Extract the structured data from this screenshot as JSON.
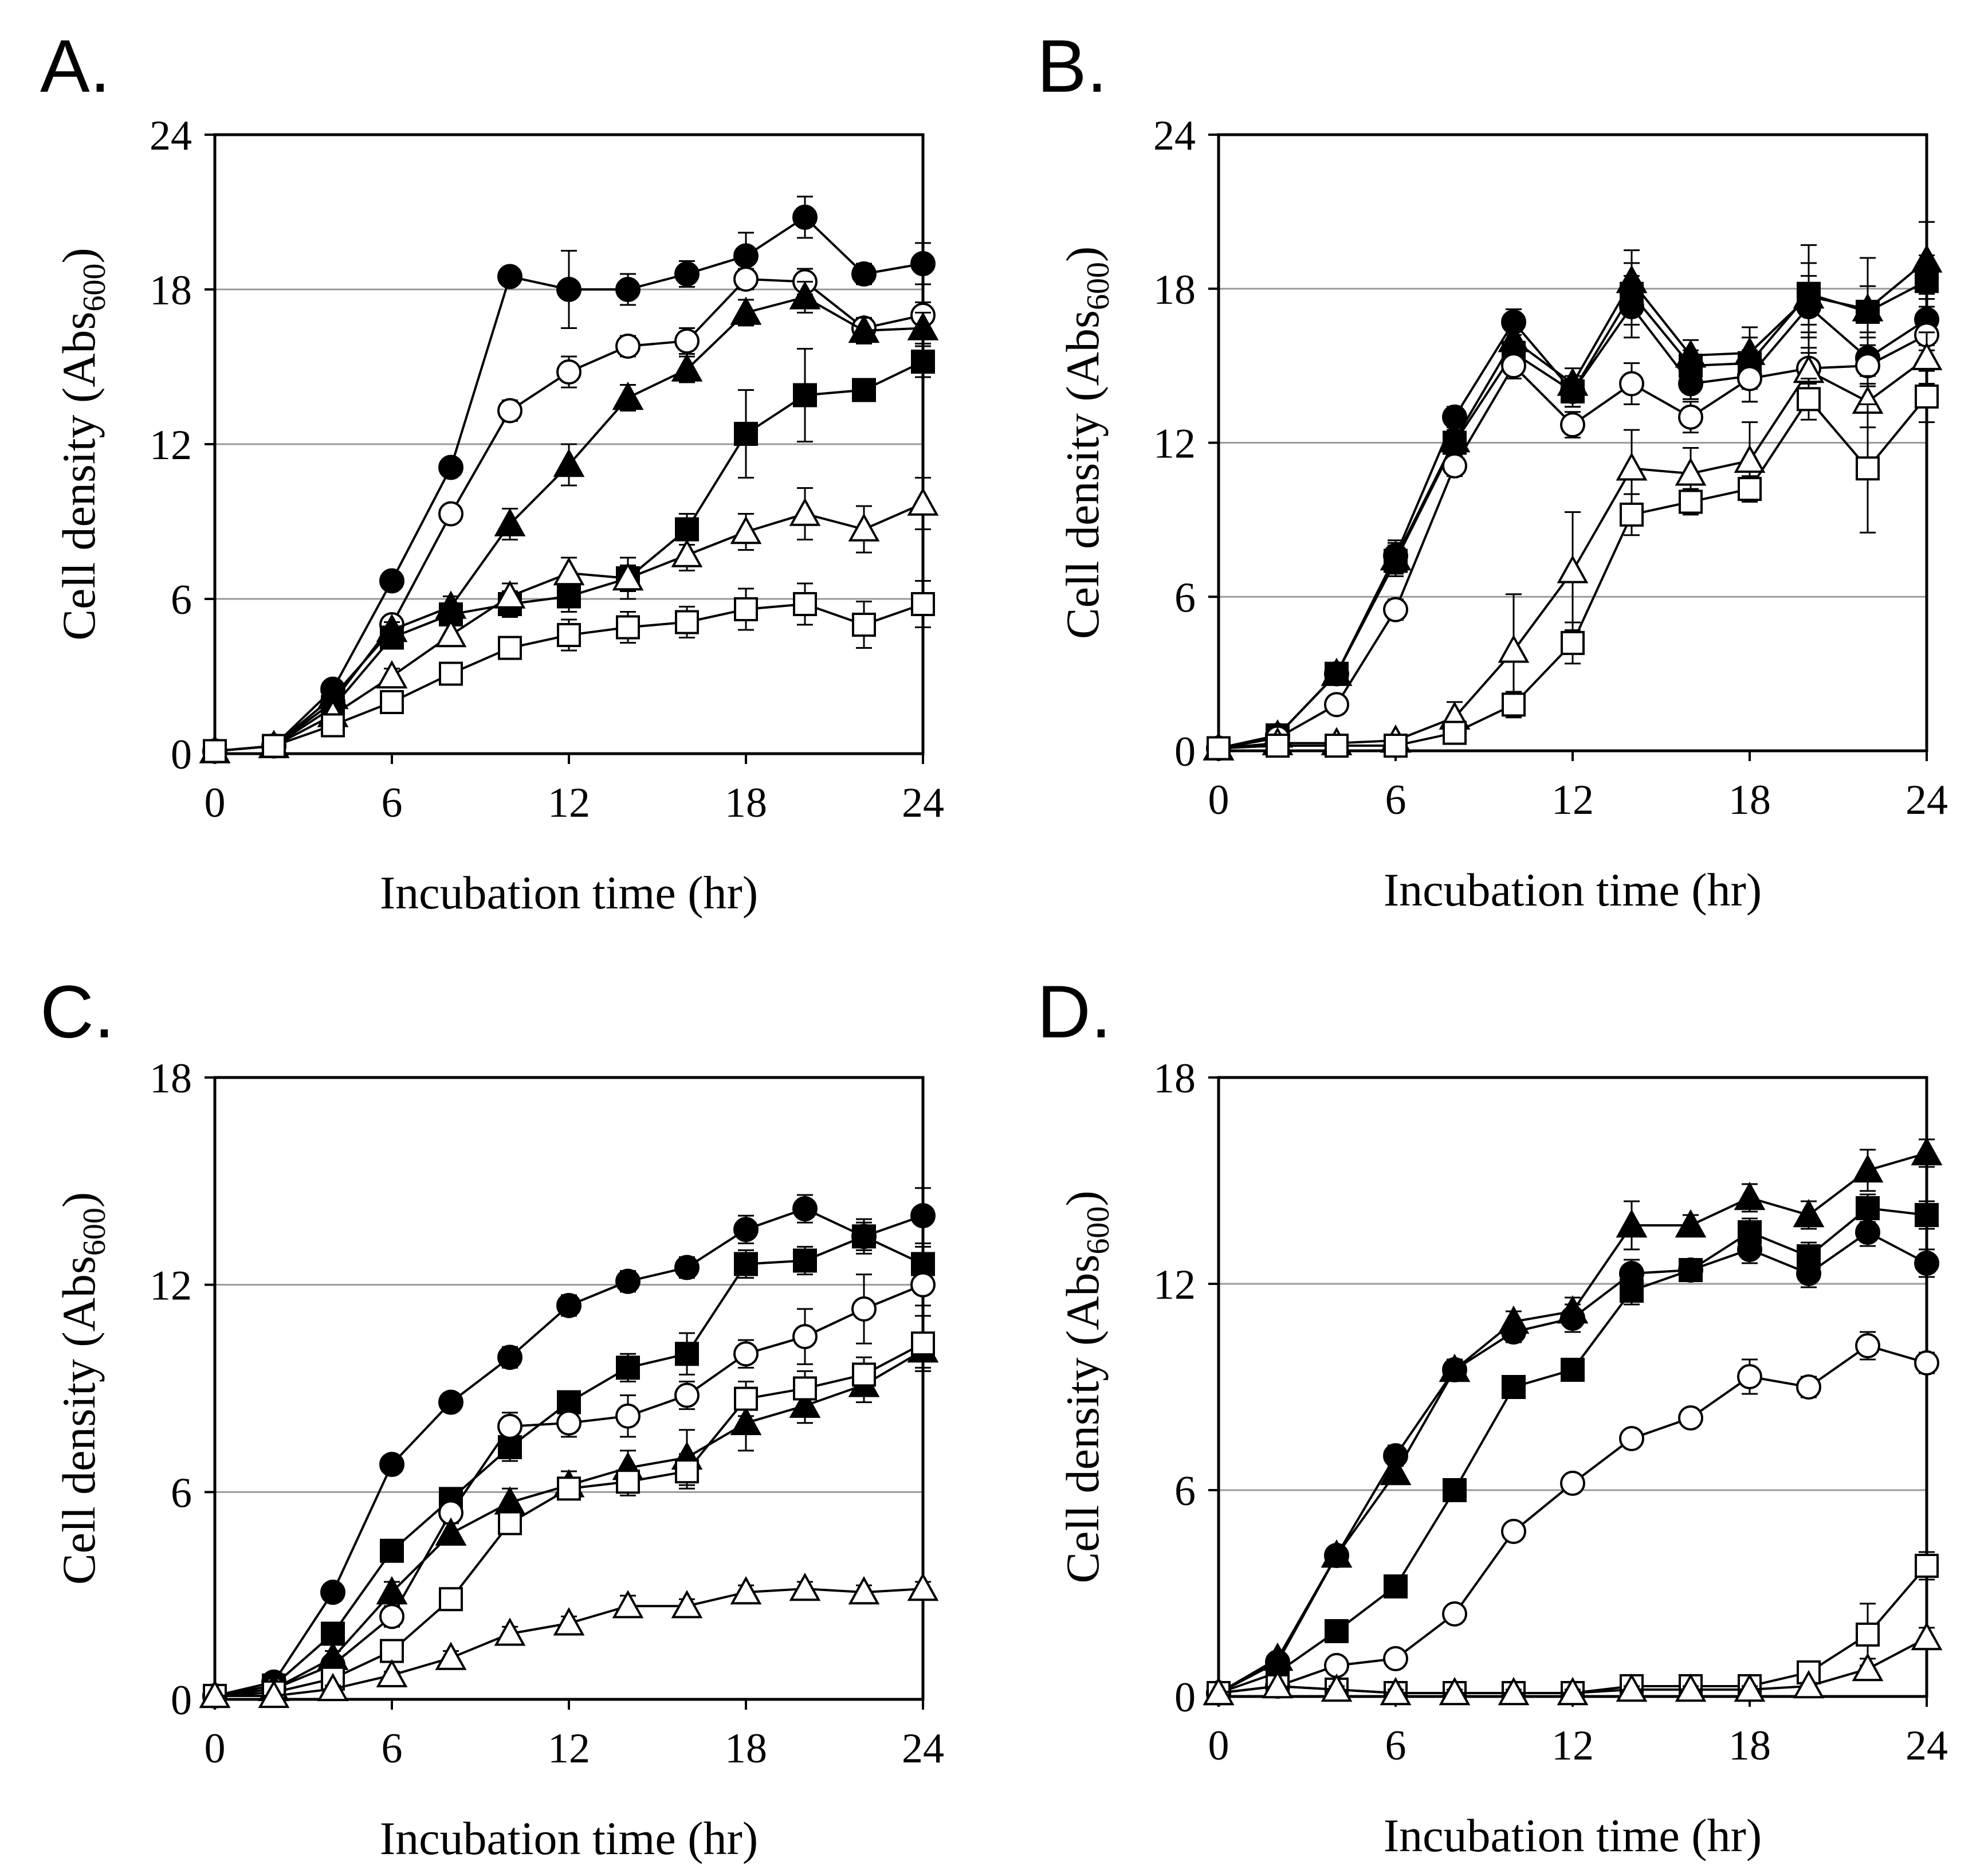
{
  "chart_data": [
    {
      "panel": "A.",
      "type": "line",
      "xlabel": "Incubation time (hr)",
      "ylabel_main": "Cell density (Abs",
      "ylabel_sub": "600",
      "ylabel_close": ")",
      "xlim": [
        0,
        24
      ],
      "ylim": [
        0,
        24
      ],
      "xticks": [
        "0",
        "6",
        "12",
        "18",
        "24"
      ],
      "yticks": [
        "0",
        "6",
        "12",
        "18",
        "24"
      ],
      "grid_y": [
        6,
        12,
        18
      ],
      "x": [
        0,
        2,
        4,
        6,
        8,
        10,
        12,
        14,
        16,
        18,
        20,
        22,
        24
      ],
      "series": [
        {
          "name": "filled-circle",
          "marker": "circle",
          "fill": "#000000",
          "values": [
            0.1,
            0.3,
            2.5,
            6.7,
            11.1,
            18.5,
            18.0,
            18.0,
            18.6,
            19.3,
            20.8,
            18.6,
            19.0
          ],
          "errors": [
            0,
            0,
            0.2,
            0.3,
            0.3,
            0.3,
            1.5,
            0.6,
            0.5,
            0.9,
            0.8,
            0.4,
            0.8
          ]
        },
        {
          "name": "open-circle",
          "marker": "circle",
          "fill": "#ffffff",
          "values": [
            0.1,
            0.3,
            2.0,
            5.0,
            9.3,
            13.3,
            14.8,
            15.8,
            16.0,
            18.4,
            18.3,
            16.5,
            17.0
          ],
          "errors": [
            0,
            0,
            0.2,
            0.3,
            0.3,
            0.4,
            0.6,
            0.4,
            0.5,
            0.4,
            0.5,
            0.4,
            0.5
          ]
        },
        {
          "name": "filled-triangle",
          "marker": "triangle",
          "fill": "#000000",
          "values": [
            0.1,
            0.3,
            2.2,
            4.8,
            5.7,
            8.9,
            11.2,
            13.8,
            14.9,
            17.1,
            17.7,
            16.4,
            16.5
          ],
          "errors": [
            0,
            0,
            0.2,
            0.3,
            0.4,
            0.6,
            0.8,
            0.5,
            0.5,
            0.5,
            0.6,
            0.5,
            0.6
          ]
        },
        {
          "name": "filled-square",
          "marker": "square",
          "fill": "#000000",
          "values": [
            0.1,
            0.3,
            1.8,
            4.5,
            5.4,
            5.8,
            6.1,
            6.8,
            8.7,
            12.4,
            13.9,
            14.1,
            15.2
          ],
          "errors": [
            0,
            0,
            0.2,
            0.3,
            0.4,
            0.5,
            0.6,
            0.5,
            0.6,
            1.7,
            1.8,
            0.4,
            0.6
          ]
        },
        {
          "name": "open-triangle",
          "marker": "triangle",
          "fill": "#ffffff",
          "values": [
            0.1,
            0.3,
            1.5,
            3.0,
            4.6,
            6.1,
            7.0,
            6.8,
            7.7,
            8.6,
            9.3,
            8.7,
            9.7
          ],
          "errors": [
            0,
            0,
            0.2,
            0.3,
            0.4,
            0.5,
            0.6,
            0.8,
            0.6,
            0.7,
            1.0,
            0.9,
            1.0
          ]
        },
        {
          "name": "open-square",
          "marker": "square",
          "fill": "#ffffff",
          "values": [
            0.1,
            0.3,
            1.1,
            2.0,
            3.1,
            4.1,
            4.6,
            4.9,
            5.1,
            5.6,
            5.8,
            5.0,
            5.8
          ],
          "errors": [
            0,
            0,
            0.2,
            0.3,
            0.3,
            0.4,
            0.6,
            0.6,
            0.6,
            0.8,
            0.8,
            0.9,
            0.9
          ]
        }
      ]
    },
    {
      "panel": "B.",
      "type": "line",
      "xlabel": "Incubation time (hr)",
      "ylabel_main": "Cell density (Abs",
      "ylabel_sub": "600",
      "ylabel_close": ")",
      "xlim": [
        0,
        24
      ],
      "ylim": [
        0,
        24
      ],
      "xticks": [
        "0",
        "6",
        "12",
        "18",
        "24"
      ],
      "yticks": [
        "0",
        "6",
        "12",
        "18",
        "24"
      ],
      "grid_y": [
        6,
        12,
        18
      ],
      "x": [
        0,
        2,
        4,
        6,
        8,
        10,
        12,
        14,
        16,
        18,
        20,
        22,
        24
      ],
      "series": [
        {
          "name": "filled-circle",
          "marker": "circle",
          "fill": "#000000",
          "values": [
            0.1,
            0.6,
            3.0,
            7.6,
            13.0,
            16.7,
            14.0,
            17.3,
            14.3,
            14.6,
            17.3,
            15.3,
            16.8
          ],
          "errors": [
            0,
            0,
            0.3,
            0.6,
            0.4,
            0.5,
            0.6,
            1.2,
            0.6,
            1.0,
            1.2,
            1.0,
            1.0
          ]
        },
        {
          "name": "filled-triangle",
          "marker": "triangle",
          "fill": "#000000",
          "values": [
            0.1,
            0.6,
            3.0,
            7.5,
            12.1,
            16.0,
            14.3,
            18.3,
            15.4,
            15.5,
            17.7,
            17.2,
            19.1
          ],
          "errors": [
            0,
            0,
            0.3,
            0.6,
            0.4,
            0.5,
            0.6,
            1.2,
            0.6,
            1.0,
            2.0,
            2.0,
            1.5
          ]
        },
        {
          "name": "filled-square",
          "marker": "square",
          "fill": "#000000",
          "values": [
            0.1,
            0.6,
            3.0,
            7.4,
            12.0,
            15.5,
            14.0,
            17.8,
            15.0,
            15.1,
            17.8,
            17.1,
            18.3
          ],
          "errors": [
            0,
            0,
            0.3,
            0.6,
            0.4,
            0.5,
            0.6,
            1.2,
            0.6,
            1.0,
            1.2,
            1.0,
            1.0
          ]
        },
        {
          "name": "open-circle",
          "marker": "circle",
          "fill": "#ffffff",
          "values": [
            0.1,
            0.5,
            1.8,
            5.5,
            11.1,
            15.0,
            12.7,
            14.3,
            13.0,
            14.5,
            14.9,
            15.0,
            16.2
          ],
          "errors": [
            0,
            0,
            0.2,
            0.4,
            0.4,
            0.5,
            0.5,
            0.8,
            0.6,
            0.9,
            0.6,
            0.8,
            0.6
          ]
        },
        {
          "name": "open-triangle",
          "marker": "triangle",
          "fill": "#ffffff",
          "values": [
            0.1,
            0.3,
            0.3,
            0.4,
            1.3,
            3.9,
            7.0,
            11.0,
            10.8,
            11.3,
            14.8,
            13.6,
            15.3
          ],
          "errors": [
            0,
            0,
            0.1,
            0.1,
            0.6,
            2.2,
            2.3,
            1.5,
            1.0,
            1.5,
            1.5,
            1.0,
            1.0
          ]
        },
        {
          "name": "open-square",
          "marker": "square",
          "fill": "#ffffff",
          "values": [
            0.1,
            0.2,
            0.2,
            0.2,
            0.7,
            1.8,
            4.2,
            9.2,
            9.7,
            10.2,
            13.7,
            11.0,
            13.8
          ],
          "errors": [
            0,
            0,
            0.1,
            0.1,
            0.3,
            0.5,
            0.8,
            0.8,
            0.5,
            0.5,
            0.8,
            2.5,
            1.0
          ]
        }
      ]
    },
    {
      "panel": "C.",
      "type": "line",
      "xlabel": "Incubation time (hr)",
      "ylabel_main": "Cell density (Abs",
      "ylabel_sub": "600",
      "ylabel_close": ")",
      "xlim": [
        0,
        24
      ],
      "ylim": [
        0,
        18
      ],
      "xticks": [
        "0",
        "6",
        "12",
        "18",
        "24"
      ],
      "yticks": [
        "0",
        "6",
        "12",
        "18"
      ],
      "grid_y": [
        6,
        12
      ],
      "x": [
        0,
        2,
        4,
        6,
        8,
        10,
        12,
        14,
        16,
        18,
        20,
        22,
        24
      ],
      "series": [
        {
          "name": "filled-circle",
          "marker": "circle",
          "fill": "#000000",
          "values": [
            0.1,
            0.5,
            3.1,
            6.8,
            8.6,
            9.9,
            11.4,
            12.1,
            12.5,
            13.6,
            14.2,
            13.4,
            14.0
          ],
          "errors": [
            0,
            0,
            0.2,
            0.2,
            0.2,
            0.3,
            0.3,
            0.3,
            0.3,
            0.4,
            0.4,
            0.4,
            0.8
          ]
        },
        {
          "name": "filled-square",
          "marker": "square",
          "fill": "#000000",
          "values": [
            0.1,
            0.4,
            1.9,
            4.3,
            5.8,
            7.3,
            8.6,
            9.6,
            10.0,
            12.6,
            12.7,
            13.4,
            12.6
          ],
          "errors": [
            0,
            0,
            0.2,
            0.3,
            0.3,
            0.4,
            0.3,
            0.4,
            0.6,
            0.4,
            0.4,
            0.5,
            0.5
          ]
        },
        {
          "name": "open-circle",
          "marker": "circle",
          "fill": "#ffffff",
          "values": [
            0.1,
            0.3,
            1.0,
            2.4,
            5.4,
            7.9,
            8.0,
            8.2,
            8.8,
            10.0,
            10.5,
            11.3,
            12.0
          ],
          "errors": [
            0,
            0,
            0.2,
            0.3,
            0.3,
            0.4,
            0.4,
            0.6,
            0.4,
            0.4,
            0.8,
            1.0,
            0.6
          ]
        },
        {
          "name": "filled-triangle",
          "marker": "triangle",
          "fill": "#000000",
          "values": [
            0.1,
            0.3,
            1.2,
            3.1,
            4.8,
            5.7,
            6.2,
            6.7,
            7.0,
            8.0,
            8.5,
            9.1,
            10.1
          ],
          "errors": [
            0,
            0,
            0.2,
            0.3,
            0.3,
            0.4,
            0.4,
            0.5,
            0.8,
            0.8,
            0.5,
            0.5,
            0.5
          ]
        },
        {
          "name": "open-square",
          "marker": "square",
          "fill": "#ffffff",
          "values": [
            0.1,
            0.2,
            0.6,
            1.4,
            2.9,
            5.1,
            6.1,
            6.3,
            6.6,
            8.7,
            9.0,
            9.4,
            10.3
          ],
          "errors": [
            0,
            0,
            0.1,
            0.2,
            0.3,
            0.3,
            0.3,
            0.4,
            0.5,
            0.5,
            0.5,
            0.5,
            0.8
          ]
        },
        {
          "name": "open-triangle",
          "marker": "triangle",
          "fill": "#ffffff",
          "values": [
            0.1,
            0.1,
            0.3,
            0.7,
            1.2,
            1.9,
            2.2,
            2.7,
            2.7,
            3.1,
            3.2,
            3.1,
            3.2
          ],
          "errors": [
            0,
            0,
            0.1,
            0.1,
            0.2,
            0.2,
            0.2,
            0.3,
            0.2,
            0.2,
            0.2,
            0.2,
            0.2
          ]
        }
      ]
    },
    {
      "panel": "D.",
      "type": "line",
      "xlabel": "Incubation time (hr)",
      "ylabel_main": "Cell density (Abs",
      "ylabel_sub": "600",
      "ylabel_close": ")",
      "xlim": [
        0,
        24
      ],
      "ylim": [
        0,
        18
      ],
      "xticks": [
        "0",
        "6",
        "12",
        "18",
        "24"
      ],
      "yticks": [
        "0",
        "6",
        "12",
        "18"
      ],
      "grid_y": [
        6,
        12
      ],
      "x": [
        0,
        2,
        4,
        6,
        8,
        10,
        12,
        14,
        16,
        18,
        20,
        22,
        24
      ],
      "series": [
        {
          "name": "filled-triangle",
          "marker": "triangle",
          "fill": "#000000",
          "values": [
            0.1,
            1.1,
            4.1,
            6.5,
            9.5,
            10.9,
            11.2,
            13.7,
            13.7,
            14.5,
            14.0,
            15.3,
            15.8
          ],
          "errors": [
            0,
            0,
            0.2,
            0.3,
            0.3,
            0.3,
            0.4,
            0.7,
            0.3,
            0.4,
            0.4,
            0.6,
            0.4
          ]
        },
        {
          "name": "filled-circle",
          "marker": "circle",
          "fill": "#000000",
          "values": [
            0.1,
            1.0,
            4.1,
            7.0,
            9.5,
            10.6,
            11.0,
            12.3,
            12.4,
            13.0,
            12.3,
            13.5,
            12.6
          ],
          "errors": [
            0,
            0,
            0.2,
            0.3,
            0.3,
            0.3,
            0.4,
            0.4,
            0.3,
            0.4,
            0.4,
            0.4,
            0.4
          ]
        },
        {
          "name": "filled-square",
          "marker": "square",
          "fill": "#000000",
          "values": [
            0.1,
            0.7,
            1.9,
            3.2,
            6.0,
            9.0,
            9.5,
            11.8,
            12.4,
            13.5,
            12.8,
            14.2,
            14.0
          ],
          "errors": [
            0,
            0,
            0.2,
            0.2,
            0.3,
            0.3,
            0.3,
            0.4,
            0.3,
            0.4,
            0.4,
            0.4,
            0.4
          ]
        },
        {
          "name": "open-circle",
          "marker": "circle",
          "fill": "#ffffff",
          "values": [
            0.1,
            0.3,
            0.9,
            1.1,
            2.4,
            4.8,
            6.2,
            7.5,
            8.1,
            9.3,
            9.0,
            10.2,
            9.7
          ],
          "errors": [
            0,
            0,
            0.1,
            0.1,
            0.2,
            0.2,
            0.2,
            0.2,
            0.2,
            0.5,
            0.3,
            0.4,
            0.3
          ]
        },
        {
          "name": "open-square",
          "marker": "square",
          "fill": "#ffffff",
          "values": [
            0.1,
            0.3,
            0.2,
            0.1,
            0.1,
            0.1,
            0.1,
            0.3,
            0.3,
            0.3,
            0.7,
            1.8,
            3.8
          ],
          "errors": [
            0,
            0,
            0.1,
            0.1,
            0.1,
            0.1,
            0.1,
            0.1,
            0.1,
            0.1,
            0.2,
            0.9,
            0.4
          ]
        },
        {
          "name": "open-triangle",
          "marker": "triangle",
          "fill": "#ffffff",
          "values": [
            0.1,
            0.3,
            0.2,
            0.1,
            0.1,
            0.1,
            0.1,
            0.2,
            0.2,
            0.2,
            0.3,
            0.8,
            1.7
          ],
          "errors": [
            0,
            0,
            0.1,
            0.1,
            0.1,
            0.1,
            0.1,
            0.1,
            0.1,
            0.1,
            0.1,
            0.3,
            0.3
          ]
        }
      ]
    }
  ]
}
